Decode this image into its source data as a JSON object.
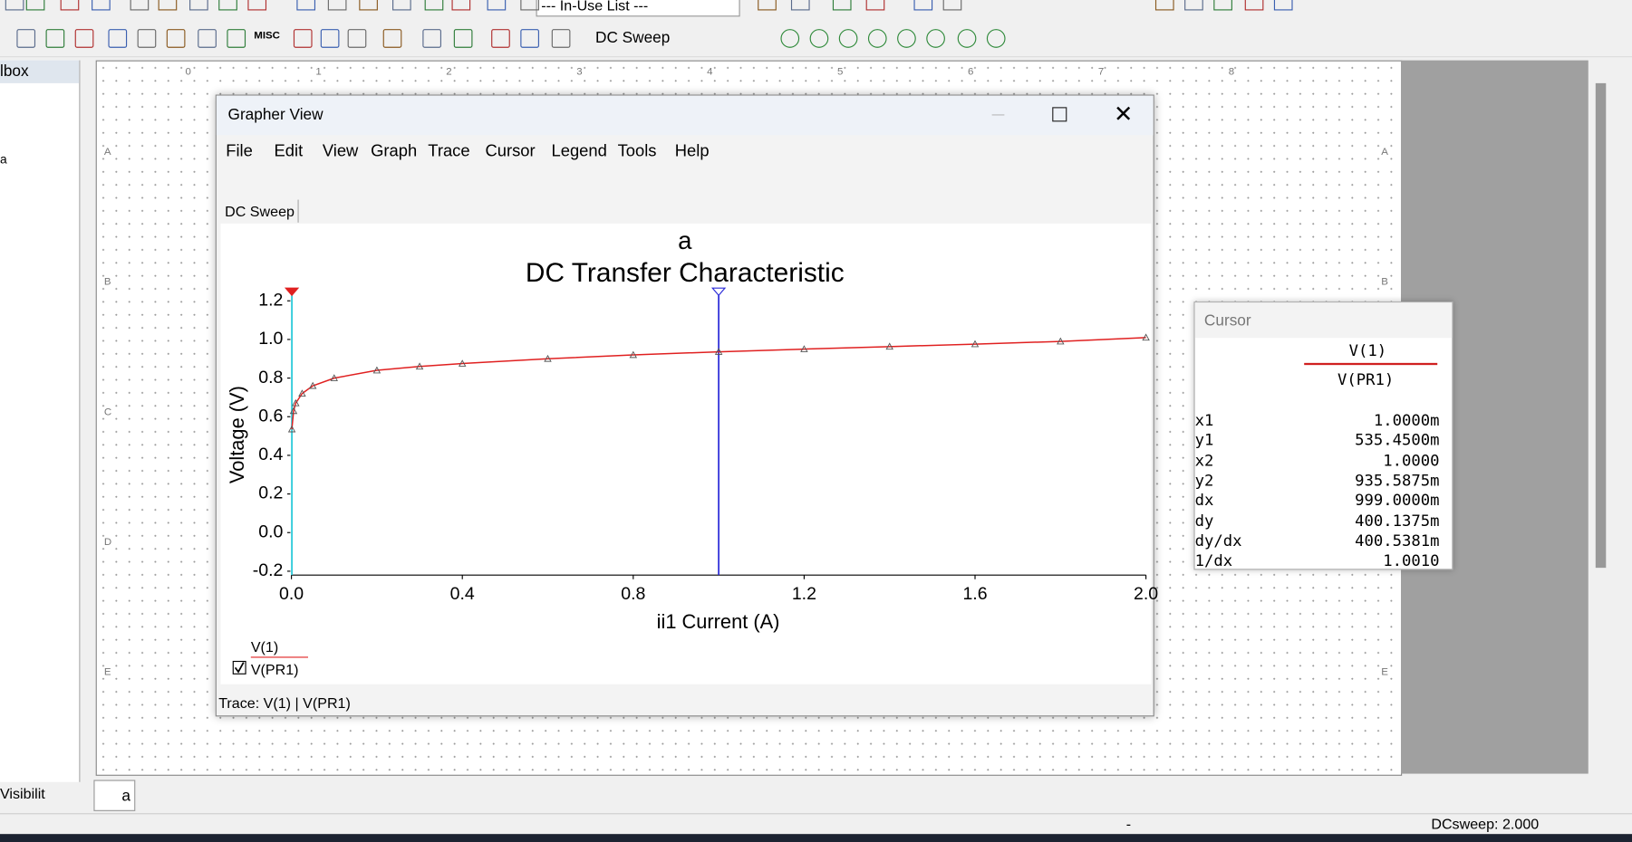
{
  "toolbar": {
    "in_use_list": "--- In-Use List ---",
    "analysis": "DC Sweep",
    "misc": "MISC"
  },
  "left_panel": {
    "title": "lbox",
    "item": "a",
    "tab": "Visibilit"
  },
  "sheet": {
    "tab": "a",
    "columns": [
      "0",
      "1",
      "2",
      "3",
      "4",
      "5",
      "6",
      "7",
      "8"
    ],
    "rows": [
      "A",
      "B",
      "C",
      "D",
      "E"
    ]
  },
  "grapher": {
    "title": "Grapher View",
    "menu": [
      "File",
      "Edit",
      "View",
      "Graph",
      "Trace",
      "Cursor",
      "Legend",
      "Tools",
      "Help"
    ],
    "tab": "DC Sweep",
    "status": "Trace: V(1) | V(PR1)"
  },
  "chart_data": {
    "type": "line",
    "title": "a",
    "subtitle": "DC Transfer Characteristic",
    "x_label": "ii1 Current (A)",
    "y_label": "Voltage (V)",
    "x": [
      0.001,
      0.005,
      0.01,
      0.025,
      0.05,
      0.1,
      0.2,
      0.3,
      0.4,
      0.6,
      0.8,
      1.0,
      1.2,
      1.4,
      1.6,
      1.8,
      2.0
    ],
    "series": [
      {
        "name": "V(PR1)",
        "expression": "V(1)",
        "color": "#e02020",
        "values": [
          0.535,
          0.63,
          0.67,
          0.72,
          0.76,
          0.8,
          0.84,
          0.86,
          0.875,
          0.9,
          0.92,
          0.936,
          0.95,
          0.963,
          0.976,
          0.99,
          1.01
        ]
      }
    ],
    "xlim": [
      0,
      2.0
    ],
    "ylim": [
      -0.22,
      1.25
    ],
    "xticks": [
      {
        "value": 0,
        "label": "0.0"
      },
      0.4,
      0.8,
      1.2,
      1.6,
      {
        "value": 2,
        "label": "2.0"
      }
    ],
    "yticks": [
      -0.2,
      {
        "value": 0,
        "label": "0.0"
      },
      0.2,
      0.4,
      0.6,
      0.8,
      {
        "value": 1,
        "label": "1.0"
      },
      1.2
    ],
    "cursor_x": [
      0.001,
      1.0
    ],
    "cursor_colors": [
      "#22c8d8",
      "#2b2bd8"
    ]
  },
  "cursor_panel": {
    "title": "Cursor",
    "header_top": "V(1)",
    "header_bottom": "V(PR1)",
    "rows": [
      [
        "x1",
        "1.0000m"
      ],
      [
        "y1",
        "535.4500m"
      ],
      [
        "x2",
        "1.0000"
      ],
      [
        "y2",
        "935.5875m"
      ],
      [
        "dx",
        "999.0000m"
      ],
      [
        "dy",
        "400.1375m"
      ],
      [
        "dy/dx",
        "400.5381m"
      ],
      [
        "1/dx",
        "1.0010"
      ]
    ]
  },
  "status_bar": {
    "dash": "-",
    "sweep": "DCsweep: 2.000"
  }
}
